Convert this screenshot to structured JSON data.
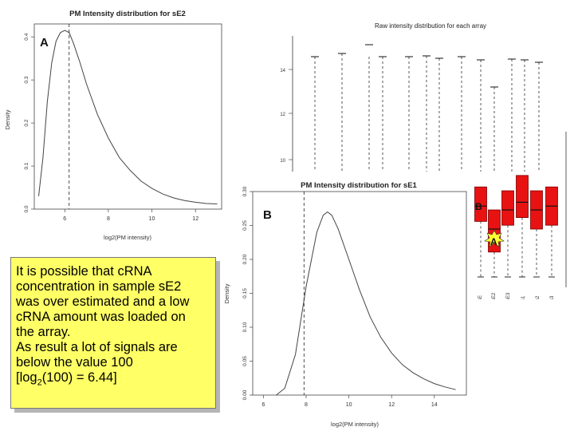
{
  "chart_data": [
    {
      "id": "A",
      "type": "line",
      "title": "PM Intensity distribution for sE2",
      "xlabel": "log2(PM intensity)",
      "ylabel": "Density",
      "xlim": [
        4.6,
        13.2
      ],
      "ylim": [
        0,
        0.43
      ],
      "xticks": [
        "6",
        "8",
        "10",
        "12"
      ],
      "yticks": [
        "0.0",
        "0.1",
        "0.2",
        "0.3",
        "0.4"
      ],
      "x": [
        4.8,
        5.0,
        5.2,
        5.4,
        5.6,
        5.8,
        6.0,
        6.2,
        6.4,
        6.7,
        7.0,
        7.5,
        8.0,
        8.5,
        9.0,
        9.5,
        10.0,
        10.5,
        11.0,
        11.5,
        12.0,
        12.5,
        13.0
      ],
      "values": [
        0.03,
        0.12,
        0.25,
        0.34,
        0.39,
        0.41,
        0.415,
        0.41,
        0.385,
        0.34,
        0.29,
        0.22,
        0.165,
        0.12,
        0.09,
        0.065,
        0.048,
        0.035,
        0.026,
        0.02,
        0.016,
        0.013,
        0.012
      ],
      "vline": 6.2,
      "label": "A"
    },
    {
      "id": "B",
      "type": "line",
      "title": "PM Intensity distribution for sE1",
      "xlabel": "log2(PM intensity)",
      "ylabel": "Density",
      "xlim": [
        5.5,
        15.5
      ],
      "ylim": [
        0,
        0.3
      ],
      "xticks": [
        "6",
        "8",
        "10",
        "12",
        "14"
      ],
      "yticks": [
        "0.00",
        "0.05",
        "0.10",
        "0.15",
        "0.20",
        "0.25",
        "0.30"
      ],
      "x": [
        6.6,
        7.0,
        7.5,
        8.0,
        8.5,
        8.8,
        9.0,
        9.2,
        9.5,
        10.0,
        10.5,
        11.0,
        11.5,
        12.0,
        12.5,
        13.0,
        13.5,
        14.0,
        14.5,
        15.0
      ],
      "values": [
        0.0,
        0.01,
        0.06,
        0.16,
        0.24,
        0.265,
        0.27,
        0.265,
        0.245,
        0.2,
        0.155,
        0.115,
        0.085,
        0.062,
        0.045,
        0.033,
        0.024,
        0.017,
        0.012,
        0.008
      ],
      "vline": 7.9,
      "label": "B"
    },
    {
      "id": "C",
      "type": "box",
      "title": "Raw intensity distribution for each array",
      "yticks": [
        "10",
        "12",
        "14"
      ],
      "categories": [
        "sE",
        "sE2",
        "sE3",
        "s1",
        "s2",
        "s3"
      ],
      "highlight_labels": [
        "B",
        "A"
      ],
      "boxes": [
        {
          "q1": 6.7,
          "median": 7.1,
          "q3": 7.6
        },
        {
          "q1": 5.9,
          "median": 6.5,
          "q3": 7.0
        },
        {
          "q1": 6.6,
          "median": 7.0,
          "q3": 7.5
        },
        {
          "q1": 6.8,
          "median": 7.2,
          "q3": 7.9
        },
        {
          "q1": 6.5,
          "median": 7.0,
          "q3": 7.5
        },
        {
          "q1": 6.6,
          "median": 7.1,
          "q3": 7.6
        }
      ],
      "colors": {
        "box": "#e81212",
        "box_edge": "#7a0000"
      }
    }
  ],
  "note": {
    "lines": [
      "It is possible that cRNA",
      "concentration in sample sE2",
      "was over estimated and a low",
      "cRNA amount was loaded on",
      "the array.",
      "As result a lot of signals are",
      "below the value 100"
    ],
    "last_pre": "[log",
    "last_sub": "2",
    "last_post": "(100) = 6.44]"
  },
  "callouts": {
    "a": "A",
    "b": "B"
  }
}
